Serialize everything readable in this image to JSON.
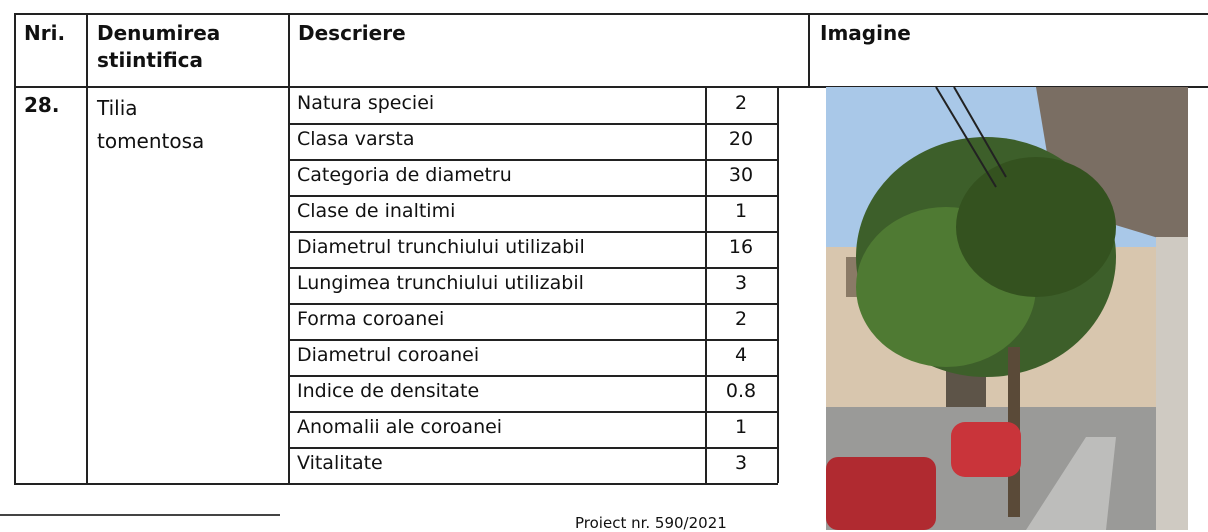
{
  "header": {
    "nr": "Nri.",
    "name": "Denumirea stiintifica",
    "description": "Descriere",
    "image": "Imagine"
  },
  "row": {
    "nr": "28.",
    "name": "Tilia tomentosa",
    "attributes": [
      {
        "label": "Natura speciei",
        "value": "2"
      },
      {
        "label": "Clasa varsta",
        "value": "20"
      },
      {
        "label": "Categoria de diametru",
        "value": "30"
      },
      {
        "label": "Clase de inaltimi",
        "value": "1"
      },
      {
        "label": "Diametrul trunchiului utilizabil",
        "value": "16"
      },
      {
        "label": "Lungimea trunchiului utilizabil",
        "value": "3"
      },
      {
        "label": "Forma coroanei",
        "value": "2"
      },
      {
        "label": "Diametrul coroanei",
        "value": "4"
      },
      {
        "label": "Indice de densitate",
        "value": "0.8"
      },
      {
        "label": "Anomalii ale coroanei",
        "value": "1"
      },
      {
        "label": "Vitalitate",
        "value": "3"
      }
    ]
  },
  "footer": {
    "text": "Proiect nr. 590/2021"
  }
}
